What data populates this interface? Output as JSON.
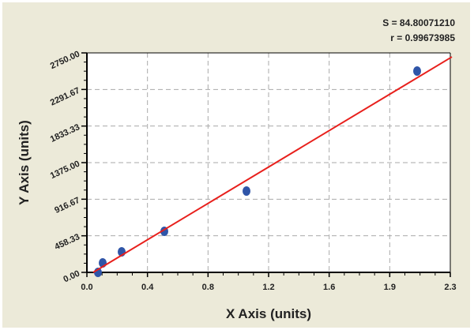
{
  "chart_data": {
    "type": "scatter",
    "stats": {
      "s": "S = 84.80071210",
      "r": "r = 0.99673985"
    },
    "xlabel": "X Axis (units)",
    "ylabel": "Y Axis (units)",
    "xlim": [
      0,
      2.3
    ],
    "ylim": [
      0,
      2750
    ],
    "x_ticks": [
      "0.0",
      "0.4",
      "0.8",
      "1.2",
      "1.6",
      "1.9",
      "2.3"
    ],
    "y_ticks": [
      "0.00",
      "458.33",
      "916.67",
      "1375.00",
      "1833.33",
      "2291.67",
      "2750.00"
    ],
    "grid": true,
    "points": [
      {
        "x": 0.07,
        "y": 0
      },
      {
        "x": 0.1,
        "y": 119
      },
      {
        "x": 0.22,
        "y": 257
      },
      {
        "x": 0.49,
        "y": 514
      },
      {
        "x": 1.01,
        "y": 1019
      },
      {
        "x": 2.09,
        "y": 2522
      }
    ],
    "fit_line": {
      "x": [
        0.04,
        2.31
      ],
      "y": [
        0,
        2700
      ]
    },
    "colors": {
      "points": "#2f55a8",
      "fit_line": "#e8201c",
      "background": "#ecead9"
    }
  }
}
